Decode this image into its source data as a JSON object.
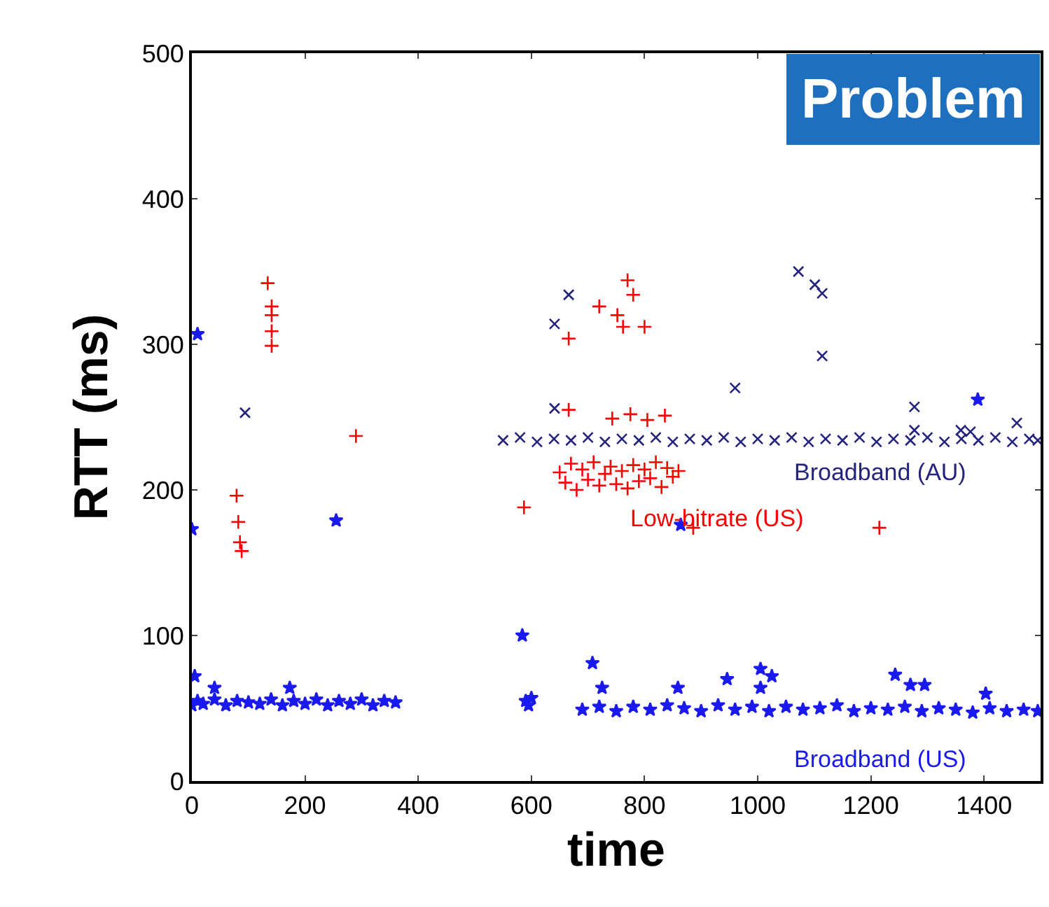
{
  "chart_data": {
    "type": "scatter",
    "xlabel": "time",
    "ylabel": "RTT (ms)",
    "xlim": [
      0,
      1500
    ],
    "ylim": [
      0,
      500
    ],
    "xticks": [
      0,
      200,
      400,
      600,
      800,
      1000,
      1200,
      1400
    ],
    "yticks": [
      0,
      100,
      200,
      300,
      400,
      500
    ],
    "legend": false,
    "annotations": [
      "Problem"
    ],
    "series": [
      {
        "name": "Broadband (AU)",
        "color": "#24247f",
        "marker": "x",
        "x": [
          94,
          550,
          580,
          610,
          640,
          641,
          641,
          666,
          670,
          700,
          730,
          760,
          790,
          820,
          850,
          880,
          910,
          940,
          960,
          970,
          1000,
          1030,
          1060,
          1072,
          1090,
          1101,
          1114,
          1114,
          1120,
          1150,
          1180,
          1210,
          1240,
          1270,
          1277,
          1277,
          1300,
          1330,
          1359,
          1360,
          1376,
          1390,
          1420,
          1450,
          1458,
          1480,
          1495
        ],
        "values": [
          253,
          234,
          236,
          233,
          235,
          314,
          256,
          334,
          234,
          236,
          233,
          235,
          234,
          236,
          233,
          235,
          234,
          236,
          270,
          233,
          235,
          234,
          236,
          350,
          233,
          341,
          335,
          292,
          235,
          234,
          236,
          233,
          235,
          234,
          257,
          241,
          236,
          233,
          241,
          235,
          240,
          234,
          236,
          233,
          246,
          235,
          234
        ]
      },
      {
        "name": "Low-bitrate (US)",
        "color": "#ff0000",
        "marker": "cross",
        "x": [
          79,
          82,
          85,
          88,
          134,
          141,
          141,
          141,
          141,
          290,
          587,
          650,
          660,
          666,
          666,
          670,
          680,
          690,
          700,
          710,
          720,
          720,
          730,
          740,
          743,
          750,
          752,
          760,
          762,
          770,
          770,
          775,
          780,
          780,
          790,
          800,
          800,
          805,
          810,
          820,
          830,
          836,
          840,
          850,
          860,
          886,
          1215
        ],
        "values": [
          196,
          178,
          164,
          158,
          342,
          326,
          320,
          309,
          299,
          237,
          188,
          212,
          205,
          304,
          255,
          218,
          200,
          214,
          207,
          219,
          326,
          203,
          211,
          216,
          249,
          204,
          320,
          213,
          312,
          201,
          344,
          252,
          217,
          334,
          206,
          214,
          312,
          248,
          208,
          219,
          202,
          251,
          215,
          209,
          213,
          174,
          174
        ]
      },
      {
        "name": "Broadband (US)",
        "color": "#1a1aee",
        "marker": "star",
        "x": [
          0,
          0,
          5,
          10,
          10,
          20,
          40,
          40,
          60,
          80,
          100,
          120,
          140,
          160,
          173,
          180,
          200,
          220,
          240,
          255,
          260,
          280,
          300,
          320,
          340,
          360,
          584,
          590,
          595,
          600,
          690,
          708,
          720,
          725,
          750,
          780,
          810,
          840,
          859,
          864,
          870,
          900,
          930,
          946,
          960,
          990,
          1005,
          1005,
          1020,
          1025,
          1050,
          1080,
          1110,
          1140,
          1170,
          1200,
          1230,
          1243,
          1260,
          1270,
          1290,
          1295,
          1320,
          1350,
          1380,
          1389,
          1403,
          1410,
          1440,
          1470,
          1495
        ],
        "values": [
          52,
          173,
          72,
          307,
          55,
          53,
          64,
          56,
          52,
          55,
          54,
          53,
          56,
          52,
          64,
          55,
          53,
          56,
          52,
          179,
          55,
          53,
          56,
          52,
          55,
          54,
          100,
          55,
          52,
          57,
          49,
          81,
          51,
          64,
          48,
          51,
          49,
          52,
          64,
          176,
          50,
          48,
          52,
          70,
          49,
          51,
          77,
          64,
          48,
          72,
          51,
          49,
          50,
          52,
          48,
          50,
          49,
          73,
          51,
          66,
          48,
          66,
          50,
          49,
          47,
          262,
          60,
          50,
          48,
          49,
          48
        ]
      }
    ]
  }
}
